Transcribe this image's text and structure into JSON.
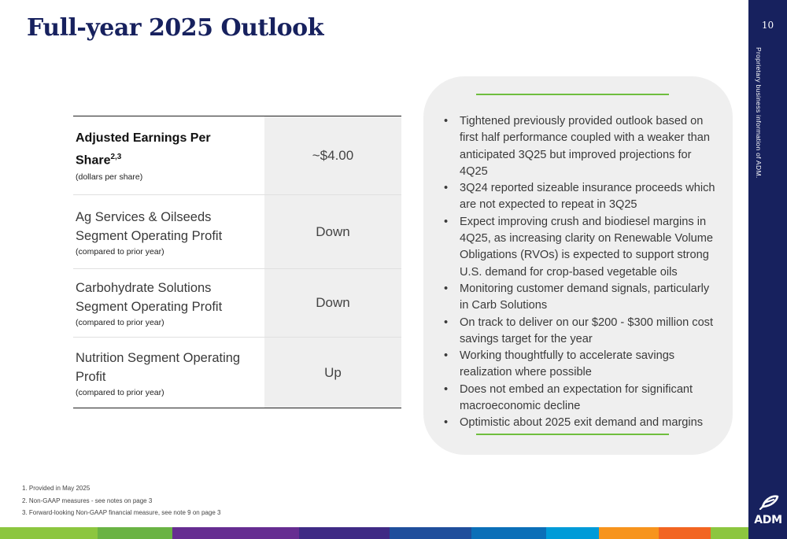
{
  "title": "Full-year 2025 Outlook",
  "page_number": "10",
  "sidebar_note": "Proprietary business information of ADM.",
  "logo_text": "ADM",
  "table": {
    "rows": [
      {
        "label": "Adjusted Earnings Per Share",
        "superscript": "2,3",
        "sublabel": "(dollars per share)",
        "value": "~$4.00"
      },
      {
        "label": "Ag Services & Oilseeds Segment Operating Profit",
        "sublabel": "(compared to prior year)",
        "value": "Down"
      },
      {
        "label": "Carbohydrate Solutions Segment Operating Profit",
        "sublabel": "(compared to prior year)",
        "value": "Down"
      },
      {
        "label": "Nutrition Segment Operating Profit",
        "sublabel": "(compared to prior year)",
        "value": "Up"
      }
    ]
  },
  "bullets": [
    "Tightened previously provided outlook based on first half performance coupled with a weaker than anticipated 3Q25 but improved projections for 4Q25",
    "3Q24 reported sizeable insurance proceeds which are not expected to repeat in 3Q25",
    "Expect improving crush and biodiesel margins in 4Q25, as increasing clarity on Renewable Volume Obligations (RVOs) is expected to support strong U.S. demand for crop-based vegetable oils",
    "Monitoring customer demand signals, particularly in Carb Solutions",
    "On track to deliver on our $200 - $300 million cost savings target for the year",
    "Working thoughtfully to accelerate savings realization where possible",
    "Does not embed an expectation for significant macroeconomic decline",
    "Optimistic about 2025 exit demand and margins"
  ],
  "footnotes": [
    "1.  Provided in May 2025",
    "2.  Non-GAAP measures - see notes on page 3",
    "3.  Forward-looking Non-GAAP financial measure, see note 9 on page 3"
  ],
  "colors": {
    "title": "#17215e",
    "sidebar": "#17215e",
    "accent_line": "#6fbe3e",
    "value_cell": "#efefef",
    "bubble": "#efefef",
    "bottom_bar": [
      "#8cc63f",
      "#6ab344",
      "#662d91",
      "#3f2a85",
      "#1f4e9c",
      "#0b6fb8",
      "#009bd8",
      "#f7941d",
      "#f26522",
      "#8cc63f"
    ]
  }
}
